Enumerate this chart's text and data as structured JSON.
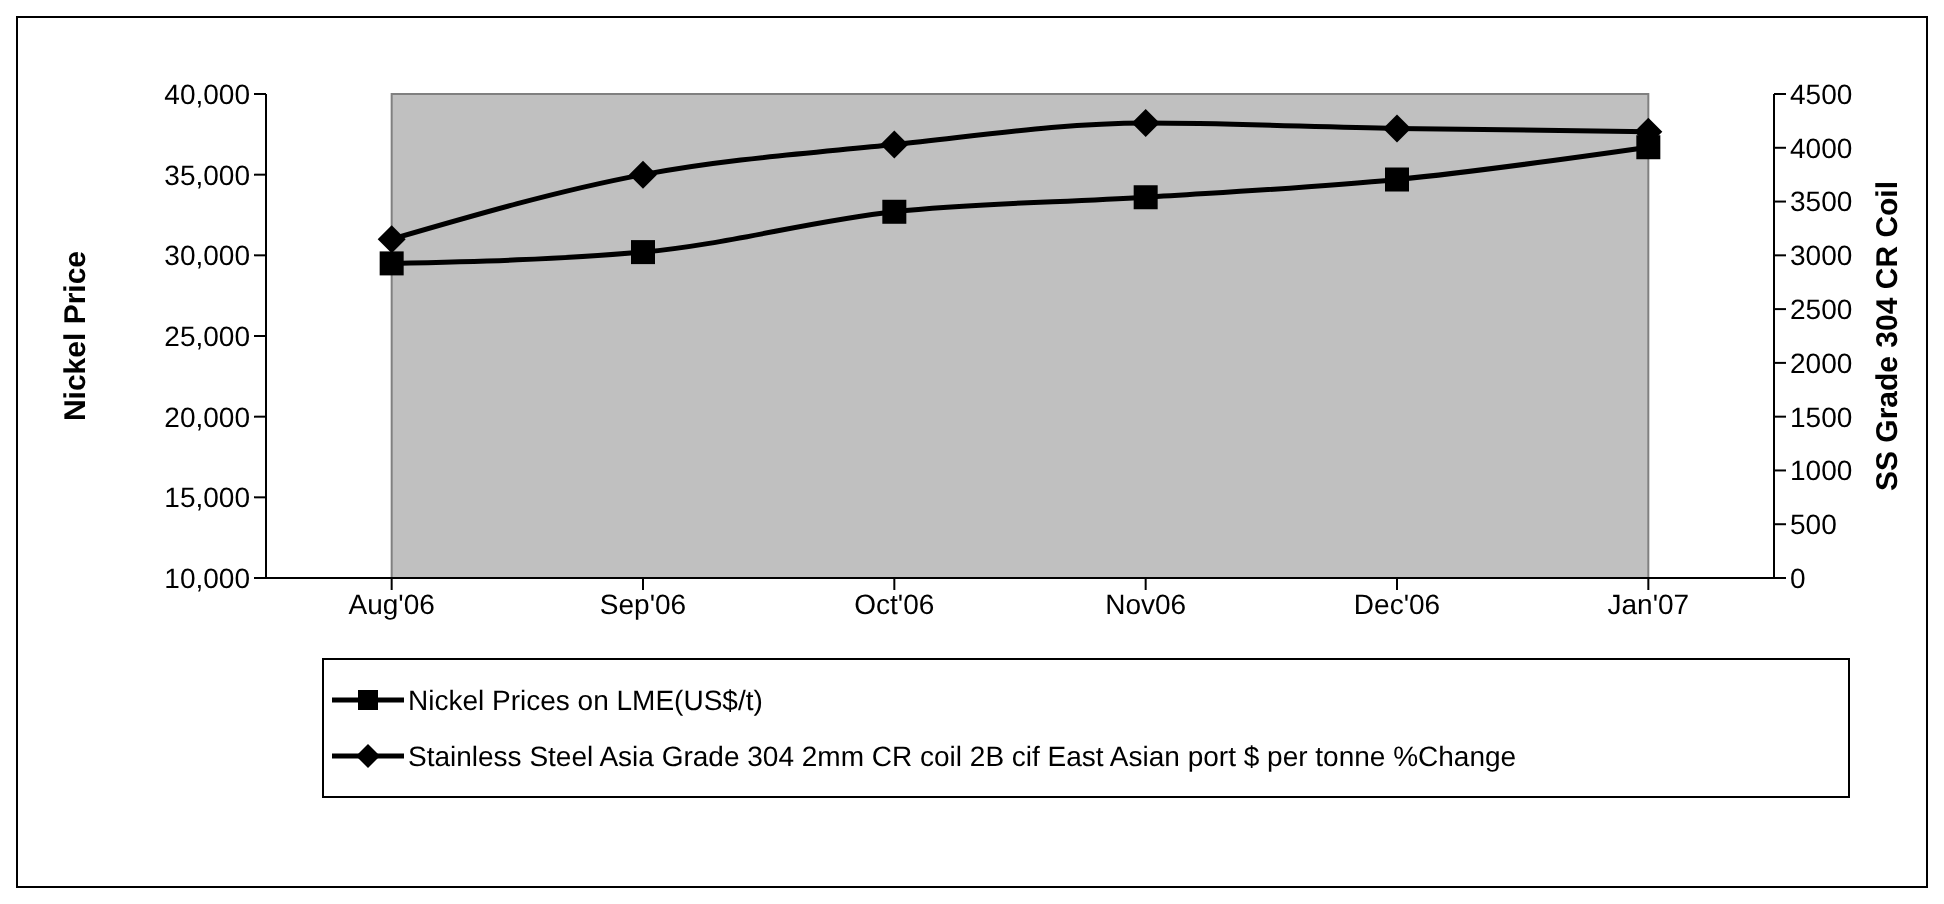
{
  "chart_data": {
    "type": "line",
    "categories": [
      "Aug'06",
      "Sep'06",
      "Oct'06",
      "Nov06",
      "Dec'06",
      "Jan'07"
    ],
    "ylabel": "Nickel Price",
    "y2label": "SS Grade 304 CR Coil",
    "ylim": [
      10000,
      40000
    ],
    "yticks": [
      {
        "value": 10000,
        "label": "10,000"
      },
      {
        "value": 15000,
        "label": "15,000"
      },
      {
        "value": 20000,
        "label": "20,000"
      },
      {
        "value": 25000,
        "label": "25,000"
      },
      {
        "value": 30000,
        "label": "30,000"
      },
      {
        "value": 35000,
        "label": "35,000"
      },
      {
        "value": 40000,
        "label": "40,000"
      }
    ],
    "y2lim": [
      0,
      4500
    ],
    "y2ticks": [
      0,
      500,
      1000,
      1500,
      2000,
      2500,
      3000,
      3500,
      4000,
      4500
    ],
    "grid": false,
    "legend": "bottom",
    "line_style": "solid",
    "series": [
      {
        "name": "Nickel Prices on LME(US$/t)",
        "color": "#000000",
        "marker": "square",
        "values": [
          29500,
          30200,
          32700,
          33600,
          34700,
          36700
        ]
      },
      {
        "name": "Stainless Steel Asia Grade 304 2mm CR coil 2B cif East Asian port $ per tonne %Change",
        "color": "#000000",
        "marker": "diamond",
        "axis": "y2",
        "values": [
          3150,
          3750,
          4030,
          4230,
          4180,
          4150
        ]
      }
    ]
  }
}
